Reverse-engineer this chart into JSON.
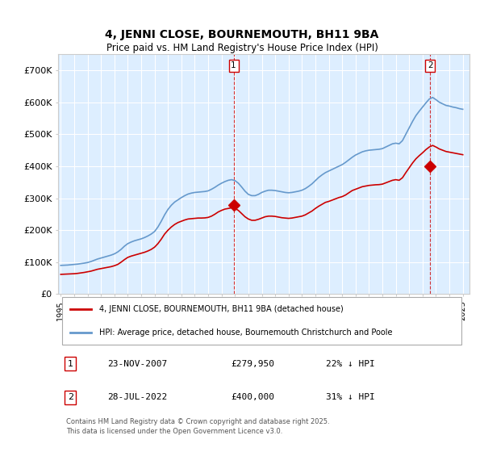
{
  "title": "4, JENNI CLOSE, BOURNEMOUTH, BH11 9BA",
  "subtitle": "Price paid vs. HM Land Registry's House Price Index (HPI)",
  "ylabel": "",
  "background_color": "#ffffff",
  "plot_bg_color": "#ddeeff",
  "grid_color": "#ffffff",
  "hpi_color": "#6699cc",
  "price_color": "#cc0000",
  "ylim": [
    0,
    750000
  ],
  "yticks": [
    0,
    100000,
    200000,
    300000,
    400000,
    500000,
    600000,
    700000
  ],
  "ytick_labels": [
    "£0",
    "£100K",
    "£200K",
    "£300K",
    "£400K",
    "£500K",
    "£600K",
    "£700K"
  ],
  "sale1_date": 2007.9,
  "sale1_price": 279950,
  "sale1_label": "1",
  "sale2_date": 2022.57,
  "sale2_price": 400000,
  "sale2_label": "2",
  "legend_line1": "4, JENNI CLOSE, BOURNEMOUTH, BH11 9BA (detached house)",
  "legend_line2": "HPI: Average price, detached house, Bournemouth Christchurch and Poole",
  "table_row1": [
    "1",
    "23-NOV-2007",
    "£279,950",
    "22% ↓ HPI"
  ],
  "table_row2": [
    "2",
    "28-JUL-2022",
    "£400,000",
    "31% ↓ HPI"
  ],
  "footer": "Contains HM Land Registry data © Crown copyright and database right 2025.\nThis data is licensed under the Open Government Licence v3.0.",
  "hpi_data_x": [
    1995,
    1995.25,
    1995.5,
    1995.75,
    1996,
    1996.25,
    1996.5,
    1996.75,
    1997,
    1997.25,
    1997.5,
    1997.75,
    1998,
    1998.25,
    1998.5,
    1998.75,
    1999,
    1999.25,
    1999.5,
    1999.75,
    2000,
    2000.25,
    2000.5,
    2000.75,
    2001,
    2001.25,
    2001.5,
    2001.75,
    2002,
    2002.25,
    2002.5,
    2002.75,
    2003,
    2003.25,
    2003.5,
    2003.75,
    2004,
    2004.25,
    2004.5,
    2004.75,
    2005,
    2005.25,
    2005.5,
    2005.75,
    2006,
    2006.25,
    2006.5,
    2006.75,
    2007,
    2007.25,
    2007.5,
    2007.75,
    2008,
    2008.25,
    2008.5,
    2008.75,
    2009,
    2009.25,
    2009.5,
    2009.75,
    2010,
    2010.25,
    2010.5,
    2010.75,
    2011,
    2011.25,
    2011.5,
    2011.75,
    2012,
    2012.25,
    2012.5,
    2012.75,
    2013,
    2013.25,
    2013.5,
    2013.75,
    2014,
    2014.25,
    2014.5,
    2014.75,
    2015,
    2015.25,
    2015.5,
    2015.75,
    2016,
    2016.25,
    2016.5,
    2016.75,
    2017,
    2017.25,
    2017.5,
    2017.75,
    2018,
    2018.25,
    2018.5,
    2018.75,
    2019,
    2019.25,
    2019.5,
    2019.75,
    2020,
    2020.25,
    2020.5,
    2020.75,
    2021,
    2021.25,
    2021.5,
    2021.75,
    2022,
    2022.25,
    2022.5,
    2022.75,
    2023,
    2023.25,
    2023.5,
    2023.75,
    2024,
    2024.25,
    2024.5,
    2024.75,
    2025
  ],
  "hpi_data_y": [
    90000,
    90500,
    91000,
    92000,
    93000,
    94000,
    95500,
    97000,
    99000,
    102000,
    106000,
    110000,
    113000,
    116000,
    119000,
    122000,
    126000,
    132000,
    140000,
    150000,
    158000,
    163000,
    167000,
    170000,
    173000,
    177000,
    182000,
    188000,
    196000,
    210000,
    228000,
    248000,
    265000,
    278000,
    288000,
    295000,
    302000,
    308000,
    313000,
    316000,
    318000,
    319000,
    320000,
    321000,
    323000,
    328000,
    334000,
    341000,
    347000,
    352000,
    356000,
    358000,
    355000,
    347000,
    335000,
    322000,
    312000,
    308000,
    308000,
    312000,
    318000,
    322000,
    325000,
    325000,
    324000,
    322000,
    320000,
    318000,
    317000,
    318000,
    320000,
    322000,
    325000,
    330000,
    337000,
    345000,
    355000,
    365000,
    373000,
    380000,
    385000,
    390000,
    395000,
    400000,
    405000,
    412000,
    420000,
    428000,
    435000,
    440000,
    445000,
    448000,
    450000,
    451000,
    452000,
    453000,
    455000,
    460000,
    465000,
    470000,
    472000,
    470000,
    480000,
    500000,
    520000,
    540000,
    558000,
    572000,
    585000,
    598000,
    610000,
    615000,
    608000,
    600000,
    595000,
    590000,
    588000,
    585000,
    583000,
    580000,
    578000
  ],
  "price_data_x": [
    1995,
    1995.25,
    1995.5,
    1995.75,
    1996,
    1996.25,
    1996.5,
    1996.75,
    1997,
    1997.25,
    1997.5,
    1997.75,
    1998,
    1998.25,
    1998.5,
    1998.75,
    1999,
    1999.25,
    1999.5,
    1999.75,
    2000,
    2000.25,
    2000.5,
    2000.75,
    2001,
    2001.25,
    2001.5,
    2001.75,
    2002,
    2002.25,
    2002.5,
    2002.75,
    2003,
    2003.25,
    2003.5,
    2003.75,
    2004,
    2004.25,
    2004.5,
    2004.75,
    2005,
    2005.25,
    2005.5,
    2005.75,
    2006,
    2006.25,
    2006.5,
    2006.75,
    2007,
    2007.25,
    2007.5,
    2007.75,
    2008,
    2008.25,
    2008.5,
    2008.75,
    2009,
    2009.25,
    2009.5,
    2009.75,
    2010,
    2010.25,
    2010.5,
    2010.75,
    2011,
    2011.25,
    2011.5,
    2011.75,
    2012,
    2012.25,
    2012.5,
    2012.75,
    2013,
    2013.25,
    2013.5,
    2013.75,
    2014,
    2014.25,
    2014.5,
    2014.75,
    2015,
    2015.25,
    2015.5,
    2015.75,
    2016,
    2016.25,
    2016.5,
    2016.75,
    2017,
    2017.25,
    2017.5,
    2017.75,
    2018,
    2018.25,
    2018.5,
    2018.75,
    2019,
    2019.25,
    2019.5,
    2019.75,
    2020,
    2020.25,
    2020.5,
    2020.75,
    2021,
    2021.25,
    2021.5,
    2021.75,
    2022,
    2022.25,
    2022.5,
    2022.75,
    2023,
    2023.25,
    2023.5,
    2023.75,
    2024,
    2024.25,
    2024.5,
    2024.75,
    2025
  ],
  "price_data_y": [
    62000,
    62500,
    63000,
    63500,
    64000,
    65000,
    66500,
    68000,
    70000,
    72000,
    75000,
    78000,
    80000,
    82000,
    84000,
    86000,
    89000,
    93000,
    100000,
    108000,
    115000,
    119000,
    122000,
    125000,
    128000,
    131000,
    135000,
    140000,
    147000,
    158000,
    172000,
    188000,
    200000,
    210000,
    218000,
    224000,
    228000,
    232000,
    235000,
    236000,
    237000,
    238000,
    238000,
    238500,
    240000,
    244000,
    250000,
    257000,
    262000,
    266000,
    268000,
    270000,
    268000,
    262000,
    252000,
    242000,
    235000,
    231000,
    231000,
    234000,
    238000,
    242000,
    244000,
    244000,
    243000,
    241000,
    239000,
    238000,
    237000,
    238000,
    240000,
    242000,
    244000,
    248000,
    254000,
    260000,
    268000,
    275000,
    281000,
    287000,
    290000,
    294000,
    298000,
    302000,
    305000,
    310000,
    317000,
    324000,
    328000,
    332000,
    336000,
    338000,
    340000,
    341000,
    342000,
    342500,
    344000,
    348000,
    352000,
    356000,
    358000,
    356000,
    364000,
    380000,
    395000,
    410000,
    423000,
    433000,
    442000,
    452000,
    460000,
    465000,
    460000,
    454000,
    450000,
    446000,
    444000,
    442000,
    440000,
    438000,
    436000
  ]
}
